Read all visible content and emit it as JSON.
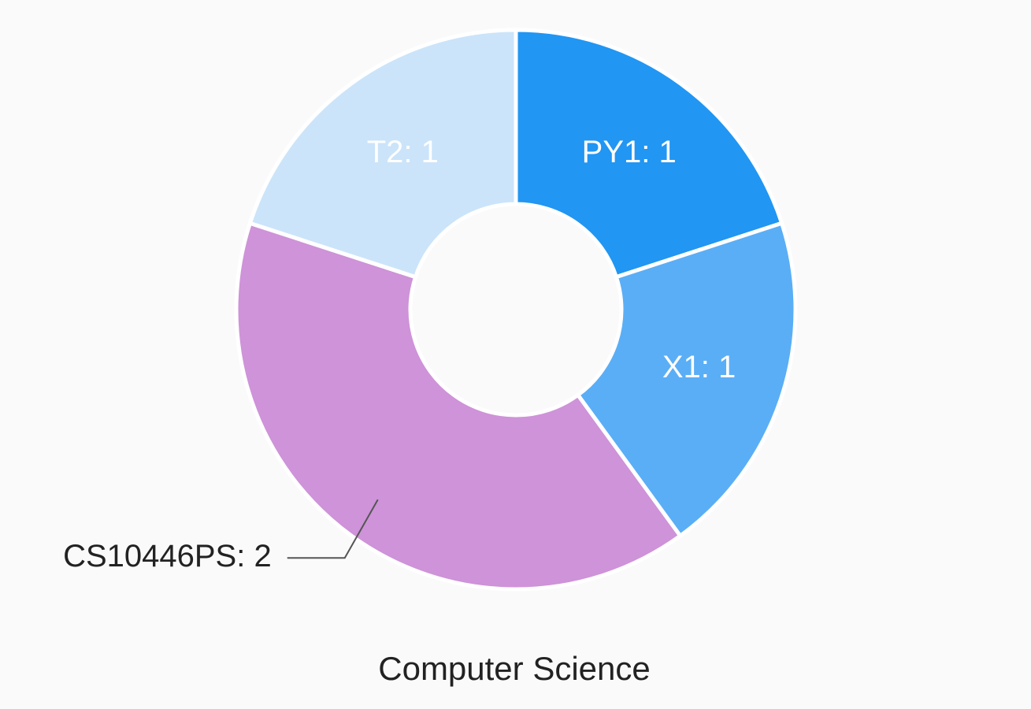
{
  "chart_data": {
    "type": "donut",
    "title": "Computer Science",
    "values": [
      1,
      1,
      2,
      1
    ],
    "value_labels": [
      "PY1: 1",
      "X1: 1",
      "CS10446PS: 2",
      "T2: 1"
    ],
    "colors": [
      "#2196f3",
      "#5aaef6",
      "#ce93d8",
      "#cbe4fa"
    ],
    "label_color": "#ffffff",
    "outside_label_color": "#222222"
  }
}
